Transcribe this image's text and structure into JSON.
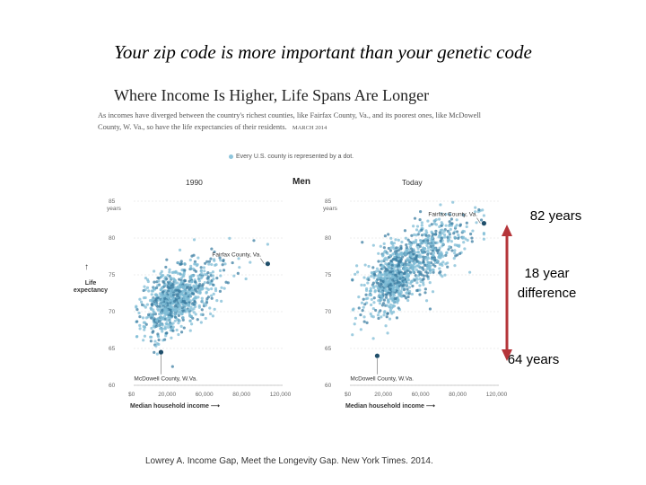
{
  "slide": {
    "title": "Your zip code is more important than your genetic code",
    "citation": "Lowrey A. Income Gap, Meet the Longevity Gap. New York Times. 2014."
  },
  "figure": {
    "title": "Where Income Is Higher, Life Spans Are Longer",
    "subtitle": "As incomes have diverged between the country's richest counties, like Fairfax County, Va., and its poorest ones, like McDowell County, W. Va., so have the life expectancies of their residents.",
    "date": "MARCH 2014",
    "legend_text": "Every U.S. county is represented by a dot.",
    "men_label": "Men",
    "ylabel": "Life expectancy",
    "xlabel": "Median household income"
  },
  "annotations": {
    "top": "82 years",
    "middle_line1": "18 year",
    "middle_line2": "difference",
    "bottom": "64 years",
    "arrow_color": "#b5353a"
  },
  "colors": {
    "dot": "#7fbcd6",
    "dot_dark": "#3d7fa3",
    "highlight": "#1f4e6a"
  },
  "chart_data": [
    {
      "type": "scatter",
      "title": "1990",
      "xlim": [
        0,
        120000
      ],
      "ylim": [
        60,
        85
      ],
      "x_ticks": [
        "$0",
        "20,000",
        "60,000",
        "80,000",
        "120,000"
      ],
      "y_ticks": [
        "60",
        "65",
        "70",
        "75",
        "80",
        "85"
      ],
      "y_top_unit": "years",
      "cluster": {
        "x_center": 32000,
        "y_center": 71.5,
        "x_spread": 14000,
        "y_spread": 2.6,
        "slope": 9e-05,
        "n": 900
      },
      "highlights": [
        {
          "name": "Fairfax County, Va.",
          "x": 108000,
          "y": 76.5
        },
        {
          "name": "McDowell County, W.Va.",
          "x": 22000,
          "y": 64.5
        }
      ]
    },
    {
      "type": "scatter",
      "title": "Today",
      "xlim": [
        0,
        120000
      ],
      "ylim": [
        60,
        85
      ],
      "x_ticks": [
        "$0",
        "20,000",
        "60,000",
        "80,000",
        "120,000"
      ],
      "y_ticks": [
        "60",
        "65",
        "70",
        "75",
        "80",
        "85"
      ],
      "y_top_unit": "years",
      "cluster": {
        "x_center": 42000,
        "y_center": 75.5,
        "x_spread": 18000,
        "y_spread": 2.8,
        "slope": 0.00011,
        "n": 1100
      },
      "highlights": [
        {
          "name": "Fairfax County, Va.",
          "x": 108000,
          "y": 82
        },
        {
          "name": "McDowell County, W.Va.",
          "x": 22000,
          "y": 64
        }
      ]
    }
  ]
}
